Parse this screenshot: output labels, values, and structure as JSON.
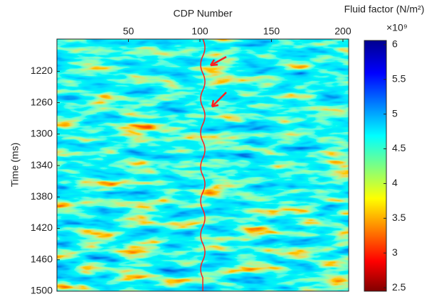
{
  "chart_data": {
    "type": "image",
    "xlabel": "CDP Number",
    "ylabel": "Time (ms)",
    "xlim": [
      0,
      204
    ],
    "xticks": [
      50,
      100,
      150,
      200
    ],
    "ylim": [
      1179,
      1500
    ],
    "yticks": [
      1220,
      1260,
      1300,
      1340,
      1380,
      1420,
      1460,
      1500
    ],
    "colorbar": {
      "title": "Fluid factor (N/m²)",
      "multiplier": "×10⁹",
      "lim": [
        2.45,
        6.06
      ],
      "ticks": [
        2.5,
        3,
        3.5,
        4,
        4.5,
        5,
        5.5,
        6
      ]
    }
  }
}
